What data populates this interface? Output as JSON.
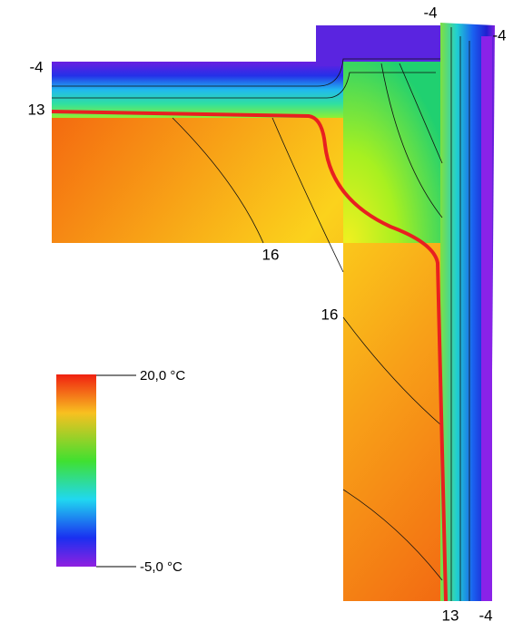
{
  "isotherm_labels": [
    "-4",
    "13",
    "16",
    "16",
    "-4",
    "-4",
    "13",
    "-4"
  ],
  "legend": {
    "max_label": "20,0 °C",
    "min_label": "-5,0 °C"
  }
}
